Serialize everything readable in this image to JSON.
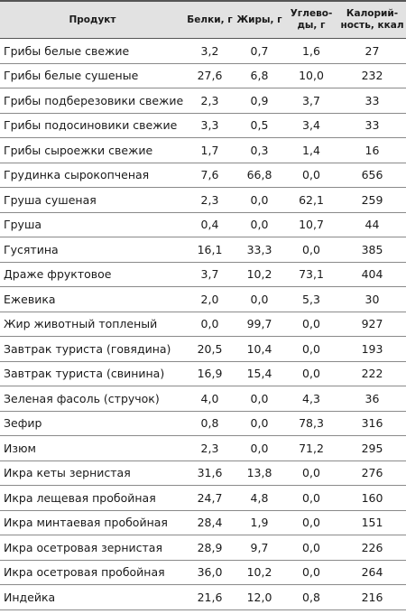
{
  "table": {
    "headers": {
      "product": "Продукт",
      "protein": "Белки, г",
      "fat": "Жиры, г",
      "carbs_1": "Углево-",
      "carbs_2": "ды, г",
      "kcal_1": "Калорий-",
      "kcal_2": "ность, ккал"
    },
    "rows": [
      [
        "Грибы белые свежие",
        "3,2",
        "0,7",
        "1,6",
        "27"
      ],
      [
        "Грибы белые сушеные",
        "27,6",
        "6,8",
        "10,0",
        "232"
      ],
      [
        "Грибы подберезовики свежие",
        "2,3",
        "0,9",
        "3,7",
        "33"
      ],
      [
        "Грибы подосиновики свежие",
        "3,3",
        "0,5",
        "3,4",
        "33"
      ],
      [
        "Грибы сыроежки свежие",
        "1,7",
        "0,3",
        "1,4",
        "16"
      ],
      [
        "Грудинка сырокопченая",
        "7,6",
        "66,8",
        "0,0",
        "656"
      ],
      [
        "Груша сушеная",
        "2,3",
        "0,0",
        "62,1",
        "259"
      ],
      [
        "Груша",
        "0,4",
        "0,0",
        "10,7",
        "44"
      ],
      [
        "Гусятина",
        "16,1",
        "33,3",
        "0,0",
        "385"
      ],
      [
        "Драже фруктовое",
        "3,7",
        "10,2",
        "73,1",
        "404"
      ],
      [
        "Ежевика",
        "2,0",
        "0,0",
        "5,3",
        "30"
      ],
      [
        "Жир животный топленый",
        "0,0",
        "99,7",
        "0,0",
        "927"
      ],
      [
        "Завтрак туриста (говядина)",
        "20,5",
        "10,4",
        "0,0",
        "193"
      ],
      [
        "Завтрак туриста (свинина)",
        "16,9",
        "15,4",
        "0,0",
        "222"
      ],
      [
        "Зеленая фасоль (стручок)",
        "4,0",
        "0,0",
        "4,3",
        "36"
      ],
      [
        "Зефир",
        "0,8",
        "0,0",
        "78,3",
        "316"
      ],
      [
        "Изюм",
        "2,3",
        "0,0",
        "71,2",
        "295"
      ],
      [
        "Икра кеты зернистая",
        "31,6",
        "13,8",
        "0,0",
        "276"
      ],
      [
        "Икра лещевая пробойная",
        "24,7",
        "4,8",
        "0,0",
        "160"
      ],
      [
        "Икра минтаевая пробойная",
        "28,4",
        "1,9",
        "0,0",
        "151"
      ],
      [
        "Икра осетровая зернистая",
        "28,9",
        "9,7",
        "0,0",
        "226"
      ],
      [
        "Икра осетровая пробойная",
        "36,0",
        "10,2",
        "0,0",
        "264"
      ],
      [
        "Индейка",
        "21,6",
        "12,0",
        "0,8",
        "216"
      ]
    ]
  }
}
